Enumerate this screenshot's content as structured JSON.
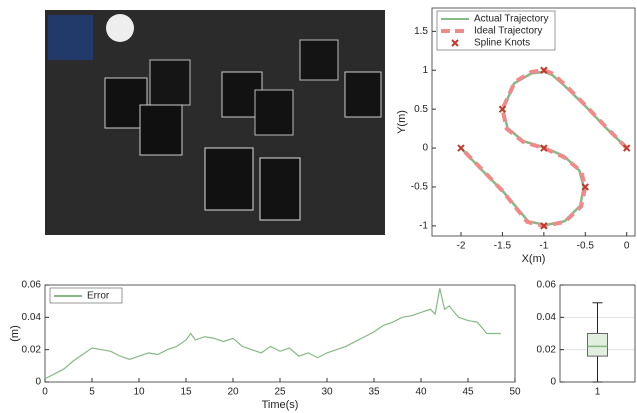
{
  "chart_data": [
    {
      "type": "line",
      "xlabel": "X(m)",
      "ylabel": "Y(m)",
      "xlim": [
        -2.35,
        0.1
      ],
      "ylim": [
        -1.13,
        1.8
      ],
      "xticks": [
        -2,
        -1.5,
        -1,
        -0.5,
        0
      ],
      "yticks": [
        -1,
        -0.5,
        0,
        0.5,
        1,
        1.5
      ],
      "legend": "upper left",
      "series": [
        {
          "name": "Actual Trajectory",
          "color": "#86b985",
          "style": "solid",
          "x": [
            0,
            -0.25,
            -0.5,
            -0.75,
            -0.9,
            -0.99,
            -1.15,
            -1.36,
            -1.49,
            -1.44,
            -1.25,
            -1.0,
            -0.76,
            -0.57,
            -0.52,
            -0.56,
            -0.75,
            -0.98,
            -1.19,
            -1.49,
            -1.76,
            -2.0
          ],
          "values": [
            0,
            0.26,
            0.54,
            0.8,
            0.94,
            0.98,
            0.96,
            0.83,
            0.5,
            0.26,
            0.09,
            0.01,
            -0.1,
            -0.29,
            -0.5,
            -0.74,
            -0.94,
            -0.99,
            -0.94,
            -0.56,
            -0.27,
            0
          ]
        },
        {
          "name": "Ideal Trajectory",
          "color": "#f08a8a",
          "style": "dashed",
          "x": [
            0,
            -0.25,
            -0.5,
            -0.75,
            -0.9,
            -1.0,
            -1.15,
            -1.35,
            -1.5,
            -1.45,
            -1.25,
            -1.0,
            -0.75,
            -0.55,
            -0.5,
            -0.55,
            -0.75,
            -1.0,
            -1.2,
            -1.5,
            -1.75,
            -2.0
          ],
          "values": [
            0,
            0.27,
            0.55,
            0.82,
            0.96,
            1.0,
            0.98,
            0.85,
            0.5,
            0.25,
            0.08,
            0,
            -0.12,
            -0.3,
            -0.5,
            -0.75,
            -0.95,
            -1.0,
            -0.95,
            -0.55,
            -0.27,
            0
          ]
        },
        {
          "name": "Spline Knots",
          "color": "#c0392b",
          "style": "markers",
          "x": [
            0,
            -1,
            -1.5,
            -1,
            -0.5,
            -1,
            -2
          ],
          "values": [
            0,
            1,
            0.5,
            0,
            -0.5,
            -1,
            0
          ]
        }
      ]
    },
    {
      "type": "line",
      "xlabel": "Time(s)",
      "ylabel": "(m)",
      "xlim": [
        0,
        50
      ],
      "ylim": [
        0,
        0.06
      ],
      "xticks": [
        0,
        5,
        10,
        15,
        20,
        25,
        30,
        35,
        40,
        45,
        50
      ],
      "yticks": [
        0,
        0.02,
        0.04,
        0.06
      ],
      "legend": "upper left",
      "x": [
        0,
        1,
        2,
        3,
        4,
        5,
        6,
        7,
        8,
        9,
        10,
        11,
        12,
        13,
        14,
        15,
        15.5,
        16,
        17,
        18,
        19,
        20,
        21,
        22,
        23,
        24,
        25,
        26,
        27,
        28,
        29,
        30,
        31,
        32,
        33,
        34,
        35,
        36,
        37,
        38,
        39,
        40,
        41,
        41.5,
        42,
        42.5,
        43,
        44,
        45,
        46,
        47,
        48.5
      ],
      "series": [
        {
          "name": "Error",
          "color": "#86b985",
          "style": "solid",
          "values": [
            0.002,
            0.005,
            0.008,
            0.013,
            0.017,
            0.021,
            0.02,
            0.019,
            0.016,
            0.014,
            0.016,
            0.018,
            0.017,
            0.02,
            0.022,
            0.026,
            0.03,
            0.026,
            0.028,
            0.027,
            0.025,
            0.027,
            0.022,
            0.02,
            0.018,
            0.022,
            0.019,
            0.021,
            0.016,
            0.018,
            0.015,
            0.018,
            0.02,
            0.022,
            0.025,
            0.028,
            0.031,
            0.035,
            0.037,
            0.04,
            0.041,
            0.043,
            0.045,
            0.042,
            0.058,
            0.045,
            0.047,
            0.04,
            0.038,
            0.037,
            0.03,
            0.03
          ]
        }
      ]
    },
    {
      "type": "box",
      "categories": [
        "1"
      ],
      "ylim": [
        0,
        0.06
      ],
      "yticks": [
        0,
        0.02,
        0.04,
        0.06
      ],
      "grid": true,
      "color": "#86b985",
      "boxes": [
        {
          "min": 0,
          "q1": 0.016,
          "median": 0.022,
          "q3": 0.03,
          "max": 0.049
        }
      ]
    }
  ]
}
